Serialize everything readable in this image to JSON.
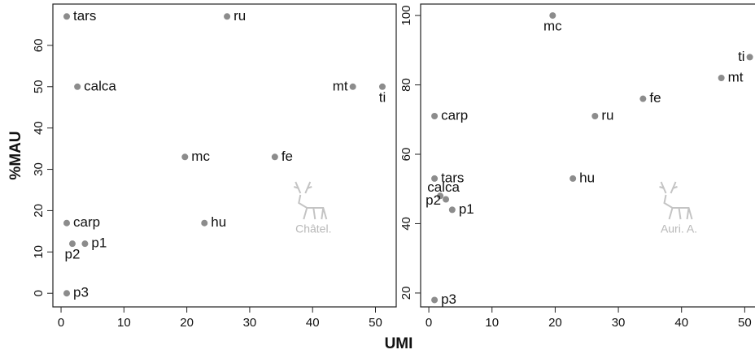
{
  "chart_data": [
    {
      "type": "scatter",
      "ylabel": "%MAU",
      "xlabel": "UMI",
      "watermark": "Châtel.",
      "color": "#8c8c8c",
      "labels": [
        "tars",
        "ru",
        "calca",
        "mt",
        "ti",
        "mc",
        "fe",
        "carp",
        "hu",
        "p2",
        "p1",
        "p3"
      ],
      "x": [
        0.9,
        26.4,
        2.6,
        46.4,
        51.1,
        19.7,
        34,
        0.9,
        22.8,
        1.8,
        3.8,
        0.9
      ],
      "y": [
        67,
        67,
        50,
        50,
        50,
        33,
        33,
        17,
        17,
        12,
        12,
        0
      ],
      "xlim": [
        -1.3,
        53.3
      ],
      "ylim": [
        -3.3,
        70
      ],
      "xticks": [
        0,
        10,
        20,
        30,
        40,
        50
      ],
      "yticks": [
        0,
        10,
        20,
        30,
        40,
        50,
        60
      ]
    },
    {
      "type": "scatter",
      "watermark": "Auri. A.",
      "color": "#8c8c8c",
      "labels": [
        "mc",
        "ti",
        "mt",
        "fe",
        "carp",
        "ru",
        "tars",
        "hu",
        "calca",
        "p2",
        "p1",
        "p3"
      ],
      "x": [
        19.6,
        50.8,
        46.3,
        33.9,
        0.9,
        26.3,
        0.9,
        22.8,
        1.8,
        2.7,
        3.7,
        0.9
      ],
      "y": [
        100,
        88,
        82,
        76,
        71,
        71,
        53,
        53,
        48,
        47,
        44,
        18
      ],
      "xlim": [
        -1.3,
        53.3
      ],
      "ylim": [
        16,
        103.3
      ],
      "xticks": [
        0,
        10,
        20,
        30,
        40,
        50
      ],
      "yticks": [
        20,
        40,
        60,
        80,
        100
      ]
    }
  ]
}
